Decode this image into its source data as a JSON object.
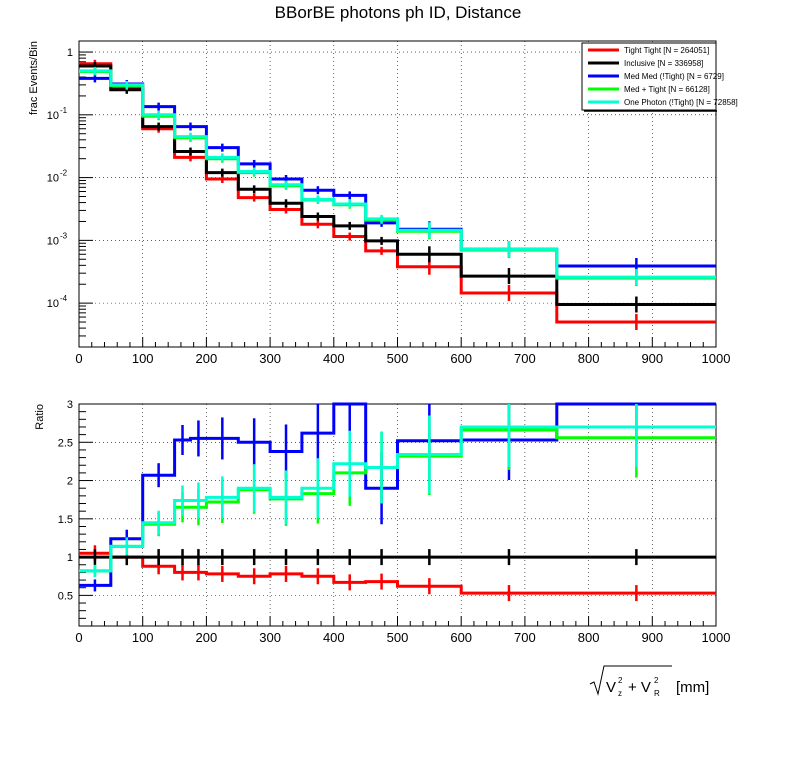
{
  "title": "BBorBE photons ph ID, Distance",
  "chart_data": [
    {
      "type": "line",
      "ylabel": "frac Events/Bin",
      "yscale": "log",
      "xlim": [
        0,
        1000
      ],
      "ylim": [
        2e-05,
        1.5
      ],
      "yticks": [
        {
          "v": 1,
          "label": "1"
        },
        {
          "v": 0.1,
          "label": "10",
          "exp": "-1"
        },
        {
          "v": 0.01,
          "label": "10",
          "exp": "-2"
        },
        {
          "v": 0.001,
          "label": "10",
          "exp": "-3"
        },
        {
          "v": 0.0001,
          "label": "10",
          "exp": "-4"
        }
      ],
      "bin_edges": [
        0,
        50,
        100,
        150,
        200,
        250,
        300,
        350,
        400,
        450,
        500,
        600,
        750,
        1000
      ],
      "series": [
        {
          "name": "Tight Tight [N = 264051]",
          "color": "#ff0000",
          "values": [
            0.65,
            0.27,
            0.06,
            0.021,
            0.0095,
            0.0048,
            0.0031,
            0.0018,
            0.00115,
            0.00068,
            0.00038,
            0.000145,
            5e-05
          ]
        },
        {
          "name": "Inclusive [N = 336958]",
          "color": "#000000",
          "values": [
            0.6,
            0.25,
            0.065,
            0.026,
            0.012,
            0.0065,
            0.0039,
            0.0024,
            0.0017,
            0.00098,
            0.0006,
            0.00027,
            9.5e-05
          ]
        },
        {
          "name": "Med Med (!Tight) [N = 6729]",
          "color": "#0000ff",
          "values": [
            0.38,
            0.31,
            0.135,
            0.065,
            0.03,
            0.0165,
            0.0095,
            0.0063,
            0.0052,
            0.0019,
            0.0015,
            0.00072,
            0.00039
          ]
        },
        {
          "name": "Med + Tight [N = 66128]",
          "color": "#00ff00",
          "values": [
            0.49,
            0.29,
            0.095,
            0.043,
            0.02,
            0.012,
            0.0074,
            0.0044,
            0.0037,
            0.0021,
            0.0014,
            0.0007,
            0.00025
          ]
        },
        {
          "name": "One Photon (!Tight) [N = 72858]",
          "color": "#00ffd2",
          "values": [
            0.5,
            0.3,
            0.1,
            0.045,
            0.021,
            0.0125,
            0.0077,
            0.0045,
            0.0038,
            0.0022,
            0.00145,
            0.00072,
            0.00026
          ]
        }
      ]
    },
    {
      "type": "line",
      "ylabel": "Ratio",
      "xlabel": "√(V_z² + V_R²) [mm]",
      "xlim": [
        0,
        1000
      ],
      "ylim": [
        0.1,
        3.0
      ],
      "xticks": [
        0,
        100,
        200,
        300,
        400,
        500,
        600,
        700,
        800,
        900,
        1000
      ],
      "yticks": [
        {
          "v": 0.5,
          "label": "0.5"
        },
        {
          "v": 1,
          "label": "1"
        },
        {
          "v": 1.5,
          "label": "1.5"
        },
        {
          "v": 2,
          "label": "2"
        },
        {
          "v": 2.5,
          "label": "2.5"
        },
        {
          "v": 3,
          "label": "3"
        }
      ],
      "bin_edges": [
        0,
        50,
        100,
        150,
        175,
        200,
        250,
        300,
        350,
        400,
        450,
        500,
        600,
        750,
        1000
      ],
      "series": [
        {
          "name": "Tight Tight",
          "color": "#ff0000",
          "values": [
            1.05,
            1.0,
            0.88,
            0.8,
            0.8,
            0.78,
            0.75,
            0.78,
            0.75,
            0.67,
            0.68,
            0.62,
            0.53,
            0.53
          ]
        },
        {
          "name": "Inclusive",
          "color": "#000000",
          "values": [
            1.0,
            1.0,
            1.0,
            1.0,
            1.0,
            1.0,
            1.0,
            1.0,
            1.0,
            1.0,
            1.0,
            1.0,
            1.0,
            1.0
          ]
        },
        {
          "name": "Med Med (!Tight)",
          "color": "#0000ff",
          "values": [
            0.63,
            1.24,
            2.07,
            2.53,
            2.55,
            2.55,
            2.5,
            2.38,
            2.62,
            3.0,
            1.9,
            2.52,
            2.53,
            3.0
          ]
        },
        {
          "name": "Med + Tight",
          "color": "#00ff00",
          "values": [
            0.82,
            1.14,
            1.43,
            1.65,
            1.65,
            1.72,
            1.88,
            1.76,
            1.83,
            2.1,
            2.17,
            2.32,
            2.66,
            2.56
          ]
        },
        {
          "name": "One Photon (!Tight)",
          "color": "#00ffd2",
          "values": [
            0.82,
            1.14,
            1.45,
            1.74,
            1.74,
            1.78,
            1.9,
            1.78,
            1.9,
            2.22,
            2.17,
            2.34,
            2.7,
            2.7
          ]
        }
      ]
    }
  ]
}
